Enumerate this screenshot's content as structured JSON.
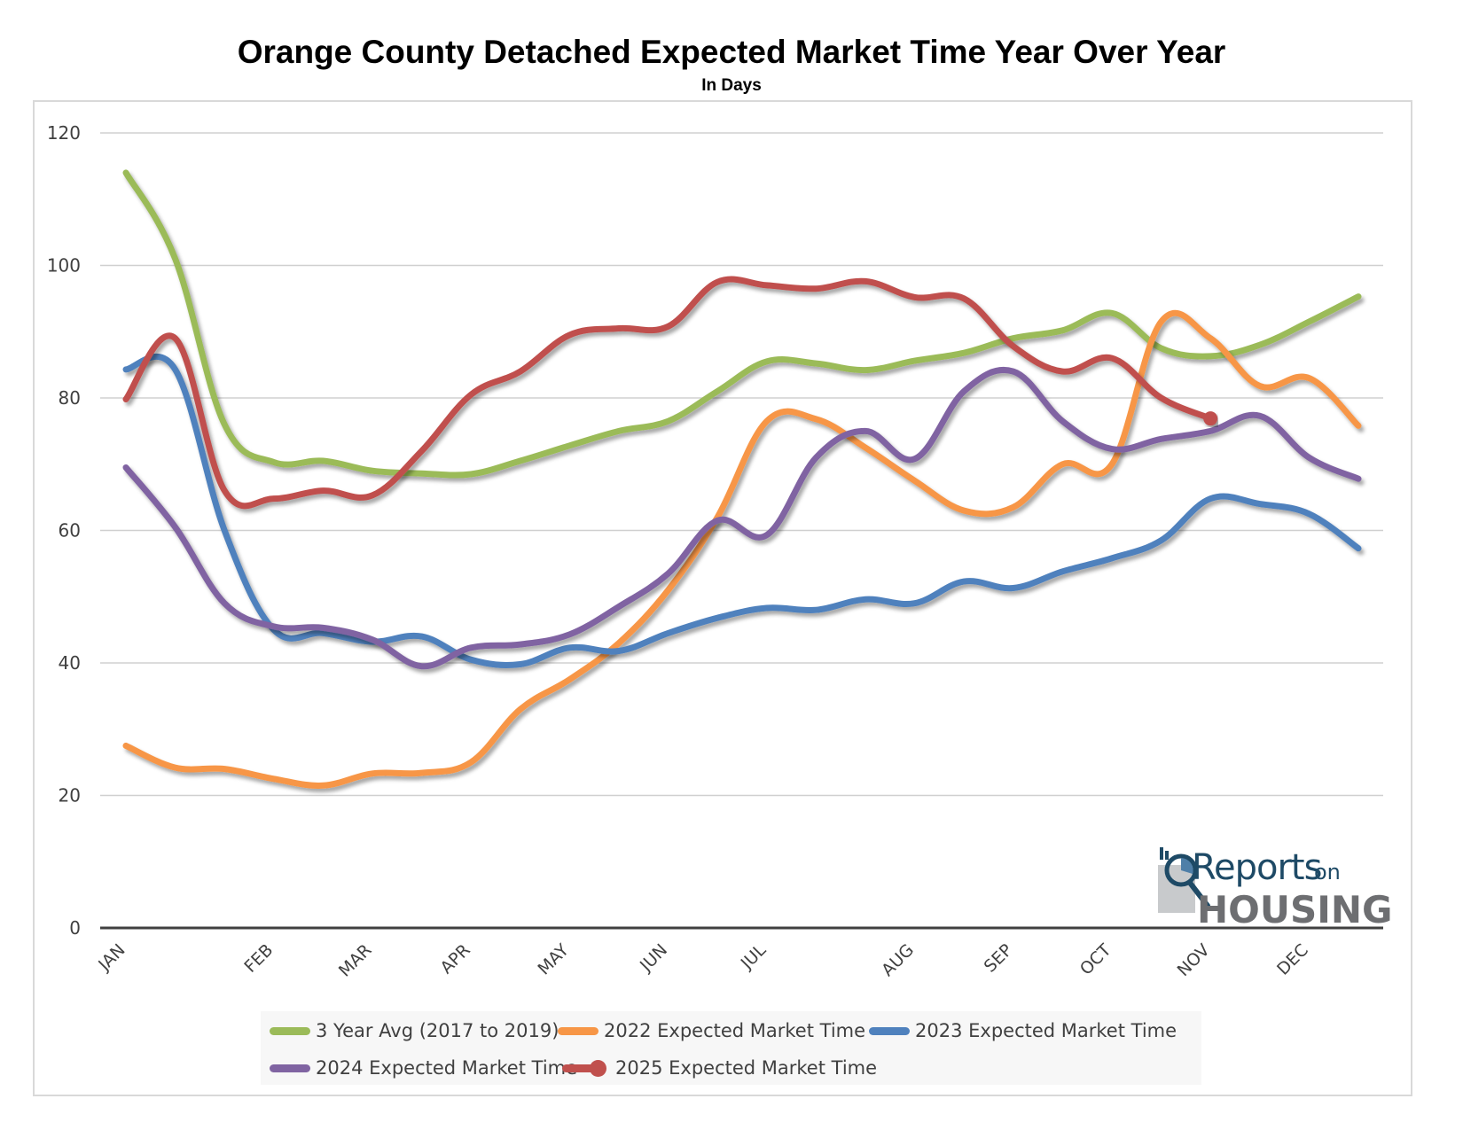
{
  "title": "Orange County Detached Expected Market Time Year Over Year",
  "subtitle": "In Days",
  "logo": {
    "reports": "Reports",
    "on": "on",
    "housing": "HOUSING"
  },
  "chart_data": {
    "type": "line",
    "title": "Orange County Detached Expected Market Time Year Over Year",
    "subtitle": "In Days",
    "xlabel": "",
    "ylabel": "",
    "ylim": [
      0,
      120
    ],
    "yticks": [
      0,
      20,
      40,
      60,
      80,
      100,
      120
    ],
    "grid": true,
    "legend_position": "bottom",
    "x": [
      0,
      1,
      2,
      3,
      4,
      5,
      6,
      7,
      8,
      9,
      10,
      11,
      12,
      13,
      14,
      15,
      16,
      17,
      18,
      19,
      20,
      21,
      22,
      23,
      24,
      25
    ],
    "x_tick_labels": [
      {
        "index": 0,
        "label": "JAN"
      },
      {
        "index": 3,
        "label": "FEB"
      },
      {
        "index": 5,
        "label": "MAR"
      },
      {
        "index": 7,
        "label": "APR"
      },
      {
        "index": 9,
        "label": "MAY"
      },
      {
        "index": 11,
        "label": "JUN"
      },
      {
        "index": 13,
        "label": "JUL"
      },
      {
        "index": 16,
        "label": "AUG"
      },
      {
        "index": 18,
        "label": "SEP"
      },
      {
        "index": 20,
        "label": "OCT"
      },
      {
        "index": 22,
        "label": "NOV"
      },
      {
        "index": 24,
        "label": "DEC"
      }
    ],
    "series": [
      {
        "name": "3 Year Avg (2017 to 2019)",
        "color": "#9bbb59",
        "values": [
          114,
          101,
          76,
          70.3,
          70.5,
          69,
          68.6,
          68.5,
          70.5,
          72.8,
          75,
          76.5,
          81,
          85.5,
          85.2,
          84.2,
          85.6,
          86.8,
          89,
          90.2,
          92.8,
          87.5,
          86.3,
          88,
          91.5,
          95.3
        ]
      },
      {
        "name": "2022 Expected Market Time",
        "color": "#f79646",
        "values": [
          27.5,
          24.2,
          24,
          22.5,
          21.5,
          23.3,
          23.4,
          25,
          33,
          37.5,
          43,
          51,
          62,
          76.5,
          76.8,
          72.5,
          67.5,
          63,
          63.5,
          70,
          70,
          91.5,
          89,
          81.8,
          83,
          75.8
        ]
      },
      {
        "name": "2023 Expected Market Time",
        "color": "#4f81bd",
        "values": [
          84.3,
          84.3,
          60,
          45,
          44.5,
          43.2,
          44,
          40.5,
          39.8,
          42.3,
          41.8,
          44.5,
          46.8,
          48.3,
          48,
          49.6,
          49,
          52.3,
          51.3,
          53.8,
          55.8,
          58.5,
          64.8,
          64,
          62.5,
          57.3
        ]
      },
      {
        "name": "2024 Expected Market Time",
        "color": "#8064a2",
        "values": [
          69.5,
          60.5,
          49,
          45.5,
          45.3,
          43.5,
          39.5,
          42.3,
          42.8,
          44.3,
          48.5,
          53.5,
          61.5,
          59.3,
          71,
          75,
          70.8,
          81,
          84,
          76.5,
          72.3,
          73.8,
          75,
          77.3,
          71,
          67.8
        ]
      },
      {
        "name": "2025 Expected Market Time",
        "color": "#c0504d",
        "end_marker": true,
        "values": [
          79.8,
          89,
          66,
          64.8,
          66,
          65.3,
          72,
          80.5,
          84,
          89.5,
          90.5,
          90.8,
          97.5,
          97,
          96.5,
          97.6,
          95.2,
          95,
          87.8,
          84,
          86,
          80,
          76.9
        ]
      }
    ]
  }
}
